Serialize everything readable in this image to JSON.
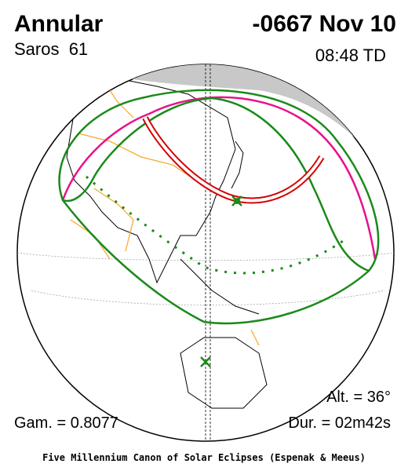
{
  "header": {
    "type": "Annular",
    "saros": "Saros  61",
    "date": "-0667 Nov 10",
    "time": "08:48 TD"
  },
  "footer": {
    "altitude": "Alt. = 36°",
    "gamma": "Gam. = 0.8077",
    "duration": "Dur. = 02m42s",
    "credit": "Five Millennium Canon of Solar Eclipses (Espenak & Meeus)"
  }
}
